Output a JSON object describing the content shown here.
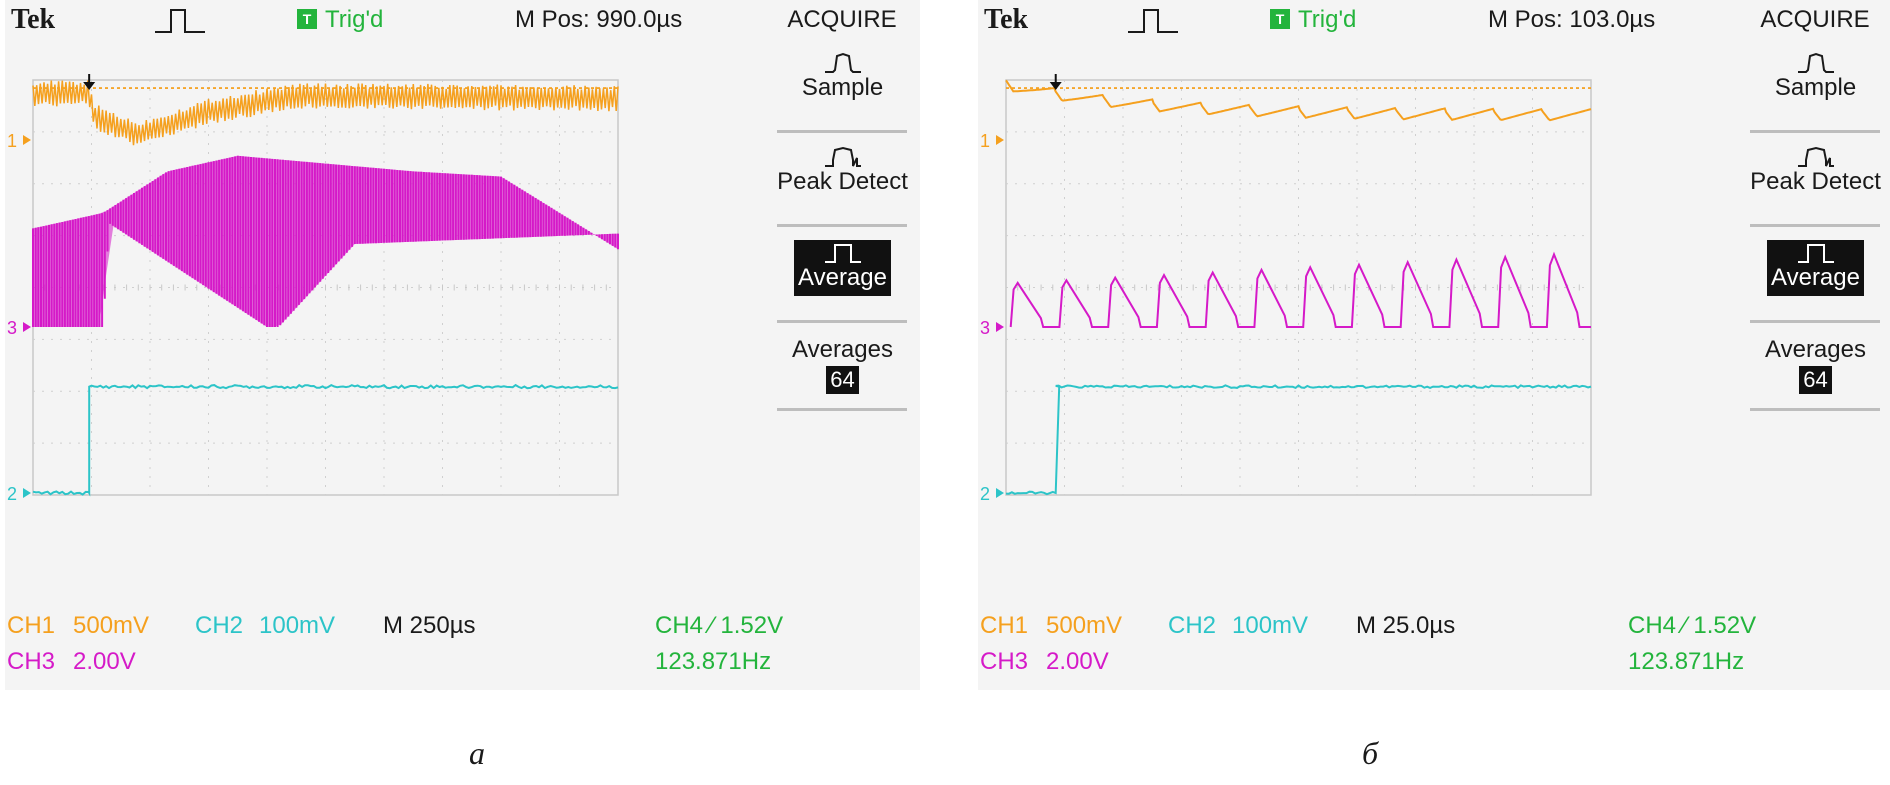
{
  "panels": [
    {
      "id": "a",
      "label": "а",
      "brand": "Tek",
      "trigger_badge": "T",
      "trigger_status": "Trig'd",
      "m_pos": "M Pos: 990.0µs",
      "menu_title": "ACQUIRE",
      "menu_items": [
        "Sample",
        "Peak Detect",
        "Average",
        "Averages"
      ],
      "selected_mode": "Average",
      "averages_count": "64",
      "channel_markers": [
        "1",
        "3",
        "2"
      ],
      "readouts": {
        "ch1_label": "CH1",
        "ch1_scale": "500mV",
        "ch2_label": "CH2",
        "ch2_scale": "100mV",
        "ch3_label": "CH3",
        "ch3_scale": "2.00V",
        "timebase": "M 250µs",
        "trigger": "CH4 ∕ 1.52V",
        "frequency": "123.871Hz"
      },
      "colors": {
        "ch1": "#f5a01e",
        "ch2": "#2cc4c8",
        "ch3": "#d51ac8",
        "trigger": "#23b43c"
      }
    },
    {
      "id": "b",
      "label": "б",
      "brand": "Tek",
      "trigger_badge": "T",
      "trigger_status": "Trig'd",
      "m_pos": "M Pos: 103.0µs",
      "menu_title": "ACQUIRE",
      "menu_items": [
        "Sample",
        "Peak Detect",
        "Average",
        "Averages"
      ],
      "selected_mode": "Average",
      "averages_count": "64",
      "channel_markers": [
        "1",
        "3",
        "2"
      ],
      "readouts": {
        "ch1_label": "CH1",
        "ch1_scale": "500mV",
        "ch2_label": "CH2",
        "ch2_scale": "100mV",
        "ch3_label": "CH3",
        "ch3_scale": "2.00V",
        "timebase": "M 25.0µs",
        "trigger": "CH4 ∕ 1.52V",
        "frequency": "123.871Hz"
      },
      "colors": {
        "ch1": "#f5a01e",
        "ch2": "#2cc4c8",
        "ch3": "#d51ac8",
        "trigger": "#23b43c"
      }
    }
  ],
  "chart_data": [
    {
      "type": "line",
      "panel": "a",
      "x_divisions": 10,
      "y_divisions": 8,
      "grid": true,
      "series": [
        {
          "name": "CH1",
          "scale": "500mV",
          "waveform": "pulsed",
          "levels_div": [
            [
              0,
              0.9
            ],
            [
              0.96,
              0.9
            ],
            [
              1.05,
              0.45
            ],
            [
              1.8,
              0.1
            ],
            [
              3,
              0.55
            ],
            [
              4.5,
              0.85
            ],
            [
              10,
              0.8
            ]
          ],
          "ripple_div": 0.25,
          "reference_line_div": 1.0
        },
        {
          "name": "CH3",
          "scale": "2.00V",
          "waveform": "pwm-burst",
          "upper_envelope_div": [
            [
              0,
              1.9
            ],
            [
              1.2,
              2.2
            ],
            [
              2.3,
              3.0
            ],
            [
              3.5,
              3.3
            ],
            [
              6.5,
              3.0
            ],
            [
              8.0,
              2.9
            ],
            [
              10,
              1.5
            ]
          ],
          "lower_envelope_div": [
            [
              0,
              0
            ],
            [
              1.2,
              0
            ],
            [
              1.3,
              2.0
            ],
            [
              4.0,
              0
            ],
            [
              4.2,
              0
            ],
            [
              5.5,
              1.6
            ],
            [
              10,
              1.8
            ]
          ]
        },
        {
          "name": "CH2",
          "scale": "100mV",
          "waveform": "step",
          "step_x_div": 0.96,
          "low_div": 0,
          "high_div": 2.05
        }
      ],
      "timebase": "M 250µs"
    },
    {
      "type": "line",
      "panel": "b",
      "x_divisions": 10,
      "y_divisions": 8,
      "grid": true,
      "series": [
        {
          "name": "CH1",
          "scale": "500mV",
          "waveform": "sawtooth",
          "start_div": 1.15,
          "settle_div": 0.55,
          "tooth_count": 12,
          "reference_line_div": 1.0
        },
        {
          "name": "CH3",
          "scale": "2.00V",
          "waveform": "pulse-train",
          "pulse_count": 12,
          "low_div": 0,
          "peak_div_first": 0.85,
          "peak_div_last": 1.4
        },
        {
          "name": "CH2",
          "scale": "100mV",
          "waveform": "step",
          "step_x_div": 0.85,
          "low_div": 0,
          "high_div": 2.05
        }
      ],
      "timebase": "M 25.0µs"
    }
  ]
}
